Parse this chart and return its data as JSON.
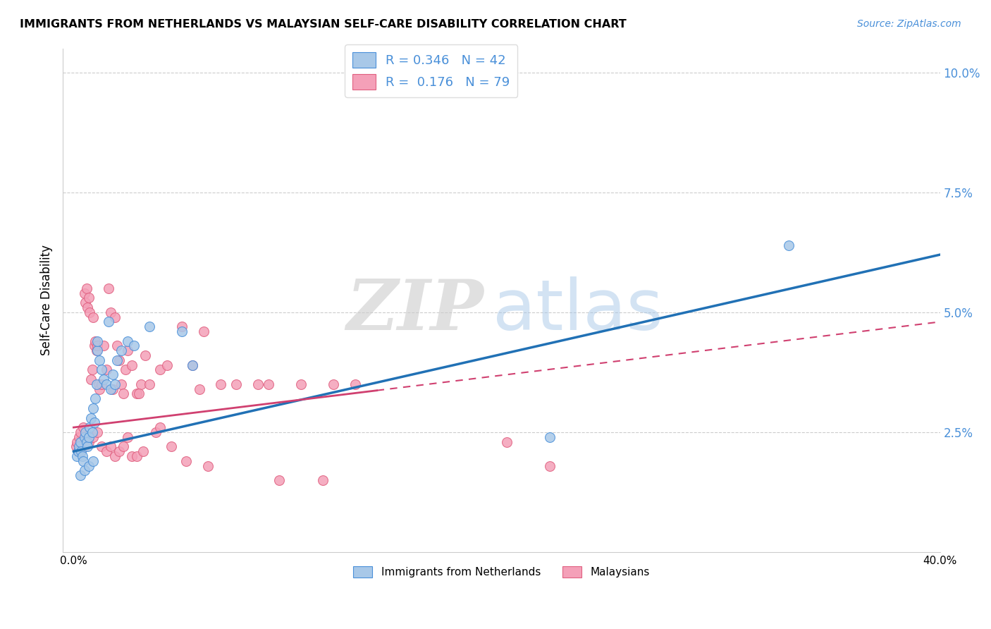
{
  "title": "IMMIGRANTS FROM NETHERLANDS VS MALAYSIAN SELF-CARE DISABILITY CORRELATION CHART",
  "source": "Source: ZipAtlas.com",
  "ylabel": "Self-Care Disability",
  "xlim": [
    0.0,
    40.0
  ],
  "ylim": [
    0.0,
    10.5
  ],
  "yticks": [
    2.5,
    5.0,
    7.5,
    10.0
  ],
  "ytick_labels": [
    "2.5%",
    "5.0%",
    "7.5%",
    "10.0%"
  ],
  "xticks": [
    0.0,
    8.0,
    16.0,
    24.0,
    32.0,
    40.0
  ],
  "xtick_labels": [
    "0.0%",
    "",
    "",
    "",
    "",
    "40.0%"
  ],
  "blue_color": "#A8C8E8",
  "pink_color": "#F4A0B8",
  "blue_edge_color": "#4a90d9",
  "pink_edge_color": "#e06080",
  "blue_line_color": "#2171B5",
  "pink_line_color": "#D04070",
  "watermark_zip": "ZIP",
  "watermark_atlas": "atlas",
  "blue_points_x": [
    0.15,
    0.2,
    0.25,
    0.3,
    0.35,
    0.4,
    0.45,
    0.5,
    0.55,
    0.6,
    0.65,
    0.7,
    0.75,
    0.8,
    0.85,
    0.9,
    0.95,
    1.0,
    1.05,
    1.1,
    1.2,
    1.3,
    1.4,
    1.5,
    1.6,
    1.7,
    1.8,
    1.9,
    2.0,
    2.2,
    2.5,
    2.8,
    3.5,
    5.0,
    5.5,
    33.0,
    22.0,
    0.3,
    0.5,
    0.7,
    0.9,
    1.1
  ],
  "blue_points_y": [
    2.0,
    2.1,
    2.2,
    2.3,
    2.1,
    2.0,
    1.9,
    2.4,
    2.5,
    2.3,
    2.2,
    2.4,
    2.6,
    2.8,
    2.5,
    3.0,
    2.7,
    3.2,
    3.5,
    4.2,
    4.0,
    3.8,
    3.6,
    3.5,
    4.8,
    3.4,
    3.7,
    3.5,
    4.0,
    4.2,
    4.4,
    4.3,
    4.7,
    4.6,
    3.9,
    6.4,
    2.4,
    1.6,
    1.7,
    1.8,
    1.9,
    4.4
  ],
  "pink_points_x": [
    0.1,
    0.15,
    0.2,
    0.25,
    0.3,
    0.35,
    0.4,
    0.45,
    0.5,
    0.55,
    0.6,
    0.65,
    0.7,
    0.75,
    0.8,
    0.85,
    0.9,
    0.95,
    1.0,
    1.05,
    1.1,
    1.15,
    1.2,
    1.3,
    1.4,
    1.5,
    1.6,
    1.7,
    1.8,
    1.9,
    2.0,
    2.1,
    2.2,
    2.3,
    2.4,
    2.5,
    2.7,
    2.9,
    3.1,
    3.3,
    3.5,
    3.8,
    4.0,
    4.3,
    5.0,
    5.5,
    6.0,
    6.8,
    7.5,
    8.5,
    9.0,
    10.5,
    12.0,
    13.0,
    20.0,
    22.0,
    0.3,
    0.5,
    0.7,
    0.9,
    1.1,
    1.3,
    1.5,
    1.7,
    1.9,
    2.1,
    2.3,
    2.5,
    2.7,
    2.9,
    3.2,
    4.5,
    5.2,
    6.2,
    9.5,
    11.5,
    3.0,
    4.0,
    5.8
  ],
  "pink_points_y": [
    2.2,
    2.3,
    2.1,
    2.4,
    2.5,
    2.3,
    2.2,
    2.6,
    5.4,
    5.2,
    5.5,
    5.1,
    5.3,
    5.0,
    3.6,
    3.8,
    4.9,
    4.3,
    4.4,
    4.2,
    4.3,
    3.5,
    3.4,
    3.5,
    4.3,
    3.8,
    5.5,
    5.0,
    3.4,
    4.9,
    4.3,
    4.0,
    3.5,
    3.3,
    3.8,
    4.2,
    3.9,
    3.3,
    3.5,
    4.1,
    3.5,
    2.5,
    3.8,
    3.9,
    4.7,
    3.9,
    4.6,
    3.5,
    3.5,
    3.5,
    3.5,
    3.5,
    3.5,
    3.5,
    2.3,
    1.8,
    2.1,
    2.2,
    2.3,
    2.4,
    2.5,
    2.2,
    2.1,
    2.2,
    2.0,
    2.1,
    2.2,
    2.4,
    2.0,
    2.0,
    2.1,
    2.2,
    1.9,
    1.8,
    1.5,
    1.5,
    3.3,
    2.6,
    3.4
  ],
  "blue_line_x0": 0.0,
  "blue_line_y0": 2.1,
  "blue_line_x1": 40.0,
  "blue_line_y1": 6.2,
  "pink_line_x0": 0.0,
  "pink_line_y0": 2.6,
  "pink_line_x1": 40.0,
  "pink_line_y1": 4.8,
  "pink_dash_start": 14.0
}
